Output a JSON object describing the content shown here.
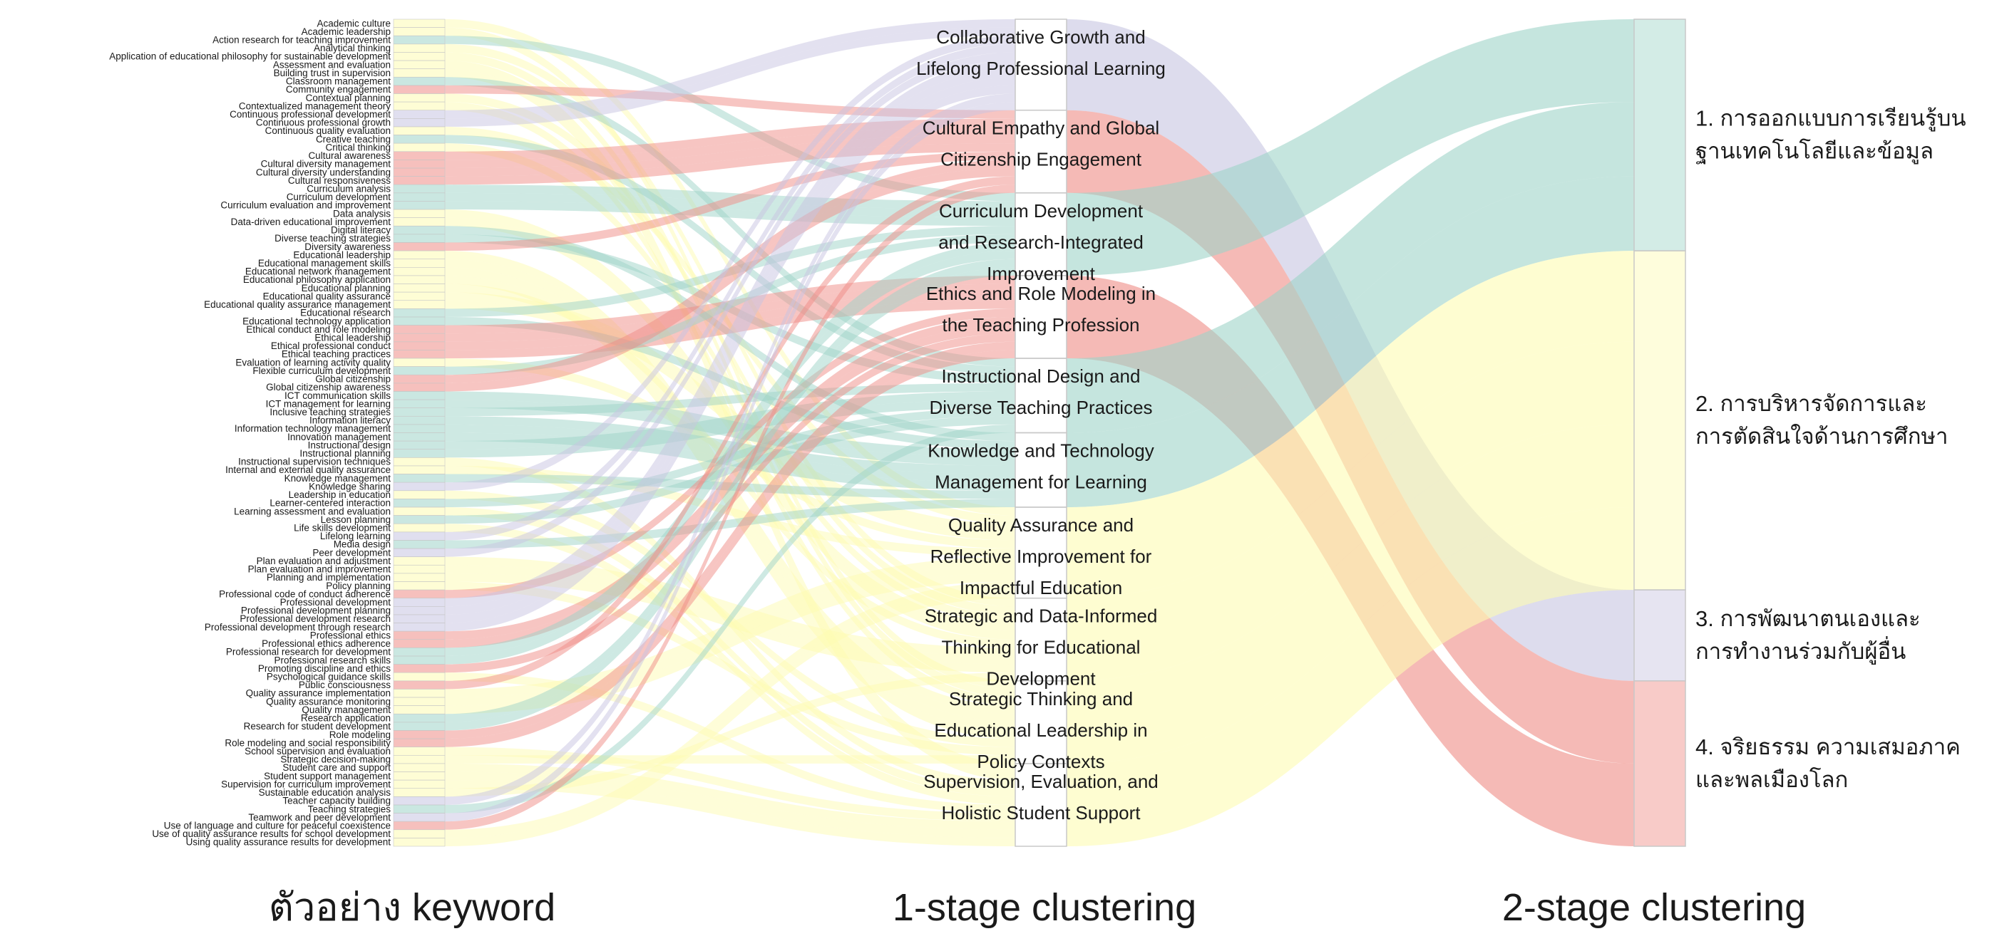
{
  "column_titles": {
    "keyword": "ตัวอย่าง keyword",
    "stage1": "1-stage clustering",
    "stage2": "2-stage clustering"
  },
  "colors": {
    "teal": "#9ed4c8",
    "yellow": "#fdfbb2",
    "lavender": "#c7c4e1",
    "salmon": "#ef8c86",
    "node_border": "#c8c8c8"
  },
  "stage2": [
    {
      "label": [
        "1. การออกแบบการเรียนรู้บน",
        "ฐานเทคโนโลยีและข้อมูล"
      ],
      "color": "teal"
    },
    {
      "label": [
        "2. การบริหารจัดการและ",
        "การตัดสินใจด้านการศึกษา"
      ],
      "color": "yellow"
    },
    {
      "label": [
        "3. การพัฒนาตนเองและ",
        "การทำงานร่วมกับผู้อื่น"
      ],
      "color": "lavender"
    },
    {
      "label": [
        "4. จริยธรรม ความเสมอภาค",
        "และพลเมืองโลก"
      ],
      "color": "salmon"
    }
  ],
  "stage1": [
    {
      "label": [
        "Collaborative Growth and",
        "Lifelong Professional Learning"
      ],
      "color": "lavender",
      "target": 2
    },
    {
      "label": [
        "Cultural Empathy and Global",
        "Citizenship Engagement"
      ],
      "color": "salmon",
      "target": 3
    },
    {
      "label": [
        "Curriculum Development",
        "and Research-Integrated",
        "Improvement"
      ],
      "color": "teal",
      "target": 0
    },
    {
      "label": [
        "Ethics and Role Modeling in",
        "the Teaching Profession"
      ],
      "color": "salmon",
      "target": 3
    },
    {
      "label": [
        "Instructional Design and",
        "Diverse Teaching Practices"
      ],
      "color": "teal",
      "target": 0
    },
    {
      "label": [
        "Knowledge and Technology",
        "Management for Learning"
      ],
      "color": "teal",
      "target": 0
    },
    {
      "label": [
        "Quality Assurance and",
        "Reflective Improvement for",
        "Impactful Education"
      ],
      "color": "yellow",
      "target": 1
    },
    {
      "label": [
        "Strategic and Data-Informed",
        "Thinking for Educational",
        "Development"
      ],
      "color": "yellow",
      "target": 1
    },
    {
      "label": [
        "Strategic Thinking and",
        "Educational Leadership in",
        "Policy Contexts"
      ],
      "color": "yellow",
      "target": 1
    },
    {
      "label": [
        "Supervision, Evaluation, and",
        "Holistic Student Support"
      ],
      "color": "yellow",
      "target": 1
    }
  ],
  "keywords": [
    {
      "label": "Academic culture",
      "cluster": 6
    },
    {
      "label": "Academic leadership",
      "cluster": 8
    },
    {
      "label": "Action research for teaching improvement",
      "cluster": 2
    },
    {
      "label": "Analytical thinking",
      "cluster": 7
    },
    {
      "label": "Application of educational philosophy for sustainable development",
      "cluster": 8
    },
    {
      "label": "Assessment and evaluation",
      "cluster": 9
    },
    {
      "label": "Building trust in supervision",
      "cluster": 9
    },
    {
      "label": "Classroom management",
      "cluster": 4
    },
    {
      "label": "Community engagement",
      "cluster": 1
    },
    {
      "label": "Contextual planning",
      "cluster": 7
    },
    {
      "label": "Contextualized management theory",
      "cluster": 8
    },
    {
      "label": "Continuous professional development",
      "cluster": 0
    },
    {
      "label": "Continuous professional growth",
      "cluster": 0
    },
    {
      "label": "Continuous quality evaluation",
      "cluster": 6
    },
    {
      "label": "Creative teaching",
      "cluster": 4
    },
    {
      "label": "Critical thinking",
      "cluster": 7
    },
    {
      "label": "Cultural awareness",
      "cluster": 1
    },
    {
      "label": "Cultural diversity management",
      "cluster": 1
    },
    {
      "label": "Cultural diversity understanding",
      "cluster": 1
    },
    {
      "label": "Cultural responsiveness",
      "cluster": 1
    },
    {
      "label": "Curriculum analysis",
      "cluster": 2
    },
    {
      "label": "Curriculum development",
      "cluster": 2
    },
    {
      "label": "Curriculum evaluation and improvement",
      "cluster": 2
    },
    {
      "label": "Data analysis",
      "cluster": 7
    },
    {
      "label": "Data-driven educational improvement",
      "cluster": 7
    },
    {
      "label": "Digital literacy",
      "cluster": 5
    },
    {
      "label": "Diverse teaching strategies",
      "cluster": 4
    },
    {
      "label": "Diversity awareness",
      "cluster": 1
    },
    {
      "label": "Educational leadership",
      "cluster": 8
    },
    {
      "label": "Educational management skills",
      "cluster": 8
    },
    {
      "label": "Educational network management",
      "cluster": 8
    },
    {
      "label": "Educational philosophy application",
      "cluster": 8
    },
    {
      "label": "Educational planning",
      "cluster": 7
    },
    {
      "label": "Educational quality assurance",
      "cluster": 6
    },
    {
      "label": "Educational quality assurance management",
      "cluster": 6
    },
    {
      "label": "Educational research",
      "cluster": 2
    },
    {
      "label": "Educational technology application",
      "cluster": 5
    },
    {
      "label": "Ethical conduct and role modeling",
      "cluster": 3
    },
    {
      "label": "Ethical leadership",
      "cluster": 3
    },
    {
      "label": "Ethical professional conduct",
      "cluster": 3
    },
    {
      "label": "Ethical teaching practices",
      "cluster": 3
    },
    {
      "label": "Evaluation of learning activity quality",
      "cluster": 6
    },
    {
      "label": "Flexible curriculum development",
      "cluster": 2
    },
    {
      "label": "Global citizenship",
      "cluster": 1
    },
    {
      "label": "Global citizenship awareness",
      "cluster": 1
    },
    {
      "label": "ICT communication skills",
      "cluster": 5
    },
    {
      "label": "ICT management for learning",
      "cluster": 5
    },
    {
      "label": "Inclusive teaching strategies",
      "cluster": 4
    },
    {
      "label": "Information literacy",
      "cluster": 5
    },
    {
      "label": "Information technology management",
      "cluster": 5
    },
    {
      "label": "Innovation management",
      "cluster": 5
    },
    {
      "label": "Instructional design",
      "cluster": 4
    },
    {
      "label": "Instructional planning",
      "cluster": 4
    },
    {
      "label": "Instructional supervision techniques",
      "cluster": 9
    },
    {
      "label": "Internal and external quality assurance",
      "cluster": 6
    },
    {
      "label": "Knowledge management",
      "cluster": 5
    },
    {
      "label": "Knowledge sharing",
      "cluster": 0
    },
    {
      "label": "Leadership in education",
      "cluster": 8
    },
    {
      "label": "Learner-centered interaction",
      "cluster": 4
    },
    {
      "label": "Learning assessment and evaluation",
      "cluster": 9
    },
    {
      "label": "Lesson planning",
      "cluster": 4
    },
    {
      "label": "Life skills development",
      "cluster": 9
    },
    {
      "label": "Lifelong learning",
      "cluster": 0
    },
    {
      "label": "Media design",
      "cluster": 5
    },
    {
      "label": "Peer development",
      "cluster": 0
    },
    {
      "label": "Plan evaluation and adjustment",
      "cluster": 7
    },
    {
      "label": "Plan evaluation and improvement",
      "cluster": 7
    },
    {
      "label": "Planning and implementation",
      "cluster": 7
    },
    {
      "label": "Policy planning",
      "cluster": 8
    },
    {
      "label": "Professional code of conduct adherence",
      "cluster": 3
    },
    {
      "label": "Professional development",
      "cluster": 0
    },
    {
      "label": "Professional development planning",
      "cluster": 0
    },
    {
      "label": "Professional development research",
      "cluster": 0
    },
    {
      "label": "Professional development through research",
      "cluster": 0
    },
    {
      "label": "Professional ethics",
      "cluster": 3
    },
    {
      "label": "Professional ethics adherence",
      "cluster": 3
    },
    {
      "label": "Professional research for development",
      "cluster": 2
    },
    {
      "label": "Professional research skills",
      "cluster": 2
    },
    {
      "label": "Promoting discipline and ethics",
      "cluster": 3
    },
    {
      "label": "Psychological guidance skills",
      "cluster": 9
    },
    {
      "label": "Public consciousness",
      "cluster": 1
    },
    {
      "label": "Quality assurance implementation",
      "cluster": 6
    },
    {
      "label": "Quality assurance monitoring",
      "cluster": 6
    },
    {
      "label": "Quality management",
      "cluster": 6
    },
    {
      "label": "Research application",
      "cluster": 2
    },
    {
      "label": "Research for student development",
      "cluster": 2
    },
    {
      "label": "Role modeling",
      "cluster": 3
    },
    {
      "label": "Role modeling and social responsibility",
      "cluster": 3
    },
    {
      "label": "School supervision and evaluation",
      "cluster": 9
    },
    {
      "label": "Strategic decision-making",
      "cluster": 8
    },
    {
      "label": "Student care and support",
      "cluster": 9
    },
    {
      "label": "Student support management",
      "cluster": 9
    },
    {
      "label": "Supervision for curriculum improvement",
      "cluster": 9
    },
    {
      "label": "Sustainable education analysis",
      "cluster": 7
    },
    {
      "label": "Teacher capacity building",
      "cluster": 0
    },
    {
      "label": "Teaching strategies",
      "cluster": 4
    },
    {
      "label": "Teamwork and peer development",
      "cluster": 0
    },
    {
      "label": "Use of language and culture for peaceful coexistence",
      "cluster": 1
    },
    {
      "label": "Use of quality assurance results for school development",
      "cluster": 6
    },
    {
      "label": "Using quality assurance results for development",
      "cluster": 6
    }
  ]
}
